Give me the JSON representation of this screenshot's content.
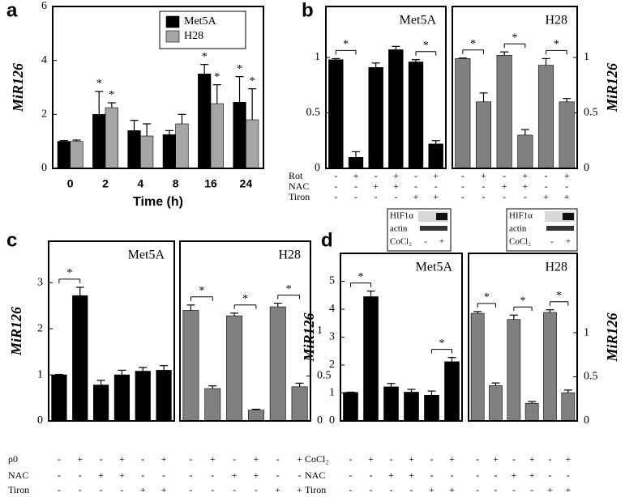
{
  "chart_data": [
    {
      "type": "bar",
      "panel": "a",
      "categories": [
        "0",
        "2",
        "4",
        "8",
        "16",
        "24"
      ],
      "series": [
        {
          "name": "Met5A",
          "color": "#000000",
          "values": [
            1,
            2,
            1.4,
            1.25,
            3.5,
            2.45
          ],
          "errors": [
            0.03,
            0.85,
            0.38,
            0.15,
            0.35,
            0.95
          ]
        },
        {
          "name": "H28",
          "color": "#a6a6a6",
          "values": [
            1,
            2.25,
            1.2,
            1.65,
            2.4,
            1.8
          ],
          "errors": [
            0.05,
            0.18,
            0.45,
            0.35,
            0.7,
            1.15
          ]
        }
      ],
      "ylim": [
        0,
        6
      ],
      "yticks": [
        0,
        2,
        4,
        6
      ],
      "x_label": "Time (h)",
      "y_label": "MiR126",
      "y_axis_side": "left",
      "legend": "upper right",
      "annotations": [
        {
          "text": "*",
          "series": 0,
          "category": 1
        },
        {
          "text": "*",
          "series": 1,
          "category": 1
        },
        {
          "text": "*",
          "series": 0,
          "category": 4
        },
        {
          "text": "*",
          "series": 1,
          "category": 4
        },
        {
          "text": "*",
          "series": 0,
          "category": 5
        },
        {
          "text": "*",
          "series": 1,
          "category": 5
        }
      ]
    },
    {
      "type": "bar",
      "panel": "b",
      "title": "Met5A",
      "color": "#000000",
      "values": [
        0.98,
        0.1,
        0.91,
        1.07,
        0.96,
        0.22
      ],
      "errors": [
        0.01,
        0.05,
        0.04,
        0.03,
        0.02,
        0.03
      ],
      "ylim": [
        0,
        1.46
      ],
      "yticks": [
        0,
        0.5,
        1
      ],
      "y_axis_side": "left",
      "brackets": [
        {
          "text": "*",
          "bars": [
            0,
            1
          ]
        },
        {
          "text": "*",
          "bars": [
            4,
            5
          ]
        }
      ],
      "treatments": [
        {
          "name": "Rot",
          "signs": [
            "-",
            "+",
            "-",
            "+",
            "-",
            "+"
          ]
        },
        {
          "name": "NAC",
          "signs": [
            "-",
            "-",
            "+",
            "+",
            "-",
            "-"
          ]
        },
        {
          "name": "Tiron",
          "signs": [
            "-",
            "-",
            "-",
            "-",
            "+",
            "+"
          ]
        }
      ]
    },
    {
      "type": "bar",
      "title": "H28",
      "color": "#808080",
      "values": [
        0.99,
        0.6,
        1.02,
        0.3,
        0.93,
        0.6
      ],
      "errors": [
        0.005,
        0.08,
        0.03,
        0.05,
        0.06,
        0.03
      ],
      "ylim": [
        0,
        1.46
      ],
      "yticks": [
        0,
        0.5,
        1
      ],
      "y_axis_side": "right",
      "y_label": "MiR126",
      "brackets": [
        {
          "text": "*",
          "bars": [
            0,
            1
          ]
        },
        {
          "text": "*",
          "bars": [
            2,
            3
          ]
        },
        {
          "text": "*",
          "bars": [
            4,
            5
          ]
        }
      ],
      "treatments": [
        {
          "signs": [
            "-",
            "+",
            "-",
            "+",
            "-",
            "+"
          ]
        },
        {
          "signs": [
            "-",
            "-",
            "+",
            "+",
            "-",
            "-"
          ]
        },
        {
          "signs": [
            "-",
            "-",
            "-",
            "-",
            "+",
            "+"
          ]
        }
      ]
    },
    {
      "type": "bar",
      "panel": "c",
      "title": "Met5A",
      "color": "#000000",
      "values": [
        1,
        2.72,
        0.78,
        1.0,
        1.08,
        1.1
      ],
      "errors": [
        0.01,
        0.18,
        0.1,
        0.1,
        0.08,
        0.1
      ],
      "ylim": [
        0,
        3.9
      ],
      "yticks": [
        0,
        1,
        2,
        3
      ],
      "y_axis_side": "left",
      "y_label": "MiR126",
      "brackets": [
        {
          "text": "*",
          "bars": [
            0,
            1
          ]
        }
      ],
      "treatments": [
        {
          "name": "ρ0",
          "signs": [
            "-",
            "+",
            "-",
            "+",
            "-",
            "+"
          ]
        },
        {
          "name": "NAC",
          "signs": [
            "-",
            "-",
            "+",
            "+",
            "-",
            "-"
          ]
        },
        {
          "name": "Tiron",
          "signs": [
            "-",
            "-",
            "-",
            "-",
            "+",
            "+"
          ]
        }
      ]
    },
    {
      "type": "bar",
      "title": "H28",
      "color": "#808080",
      "values": [
        1.23,
        0.36,
        1.17,
        0.12,
        1.27,
        0.38
      ],
      "errors": [
        0.06,
        0.03,
        0.03,
        0.01,
        0.04,
        0.04
      ],
      "ylim": [
        0,
        2
      ],
      "yticks": [
        0,
        0.5,
        1
      ],
      "y_axis_side": "right",
      "brackets": [
        {
          "text": "*",
          "bars": [
            0,
            1
          ]
        },
        {
          "text": "*",
          "bars": [
            2,
            3
          ]
        },
        {
          "text": "*",
          "bars": [
            4,
            5
          ]
        }
      ],
      "treatments": [
        {
          "signs": [
            "-",
            "+",
            "-",
            "+",
            "-",
            "+"
          ]
        },
        {
          "signs": [
            "-",
            "-",
            "+",
            "+",
            "-",
            "-"
          ]
        },
        {
          "signs": [
            "-",
            "-",
            "-",
            "-",
            "+",
            "+"
          ]
        }
      ]
    },
    {
      "type": "bar",
      "panel": "d",
      "title": "Met5A",
      "color": "#000000",
      "values": [
        1.02,
        4.45,
        1.22,
        1.03,
        0.92,
        2.12
      ],
      "errors": [
        0.01,
        0.2,
        0.12,
        0.1,
        0.15,
        0.15
      ],
      "ylim": [
        0,
        6
      ],
      "yticks": [
        0,
        1,
        2,
        3,
        4,
        5
      ],
      "y_axis_side": "left",
      "y_label": "MiR126",
      "brackets": [
        {
          "text": "*",
          "bars": [
            0,
            1
          ]
        },
        {
          "text": "*",
          "bars": [
            4,
            5
          ]
        }
      ],
      "inset": {
        "labels": [
          "HIF1α",
          "actin",
          "CoCl₂"
        ],
        "signs": [
          "-",
          "+"
        ]
      },
      "treatments": [
        {
          "name": "CoCl₂",
          "signs": [
            "-",
            "+",
            "-",
            "+",
            "-",
            "+"
          ]
        },
        {
          "name": "NAC",
          "signs": [
            "-",
            "-",
            "+",
            "+",
            "-",
            "-"
          ]
        },
        {
          "name": "Tiron",
          "signs": [
            "-",
            "-",
            "-",
            "-",
            "+",
            "+"
          ]
        }
      ]
    },
    {
      "type": "bar",
      "title": "H28",
      "color": "#808080",
      "values": [
        1.22,
        0.4,
        1.15,
        0.2,
        1.23,
        0.32
      ],
      "errors": [
        0.02,
        0.03,
        0.05,
        0.02,
        0.03,
        0.03
      ],
      "ylim": [
        0,
        1.9
      ],
      "yticks": [
        0,
        0.5,
        1
      ],
      "y_axis_side": "right",
      "y_label": "MiR126",
      "brackets": [
        {
          "text": "*",
          "bars": [
            0,
            1
          ]
        },
        {
          "text": "*",
          "bars": [
            2,
            3
          ]
        },
        {
          "text": "*",
          "bars": [
            4,
            5
          ]
        }
      ],
      "inset": {
        "labels": [
          "HIF1α",
          "actin",
          "CoCl₂"
        ],
        "signs": [
          "-",
          "+"
        ]
      },
      "treatments": [
        {
          "signs": [
            "-",
            "+",
            "-",
            "+",
            "-",
            "+"
          ]
        },
        {
          "signs": [
            "-",
            "-",
            "+",
            "+",
            "-",
            "-"
          ]
        },
        {
          "signs": [
            "-",
            "-",
            "-",
            "-",
            "+",
            "+"
          ]
        }
      ]
    }
  ]
}
